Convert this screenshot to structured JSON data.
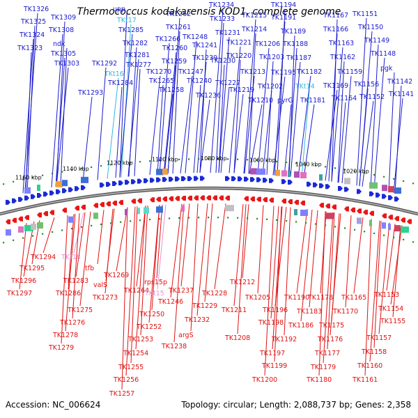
{
  "title": "Thermococcus kodakarensis KOD1, complete genome",
  "footer": {
    "accession": "Accession: NC_006624",
    "summary": "Topology: circular; Length: 2,088,737 bp; Genes: 2,358"
  },
  "colors": {
    "forward_gene": "#1a1acc",
    "reverse_gene": "#e01010",
    "forward_rna": "#30b8e0",
    "reverse_rna": "#e890d0",
    "backbone": "#888888",
    "tick": "#2a8a2a"
  },
  "scale_labels": [
    "1160 kbp",
    "1140 kbp",
    "1120 kbp",
    "1100 kbp",
    "1080 kbp",
    "1060 kbp",
    "1040 kbp",
    "1020 kbp"
  ],
  "top_labels": [
    "TK1326",
    "TK1325",
    "TK1324",
    "TK1323",
    "TK1309",
    "TK1308",
    "ndk",
    "TK1305",
    "TK1303",
    "upp",
    "TKt17",
    "TK1285",
    "TK1282",
    "TK1281",
    "TK1277",
    "TK1292",
    "TKt16",
    "TK1284",
    "TK1293",
    "TK1262",
    "TK1261",
    "TK1266",
    "TK1260",
    "TK1259",
    "TK1270",
    "TK1265",
    "TK1258",
    "TK1248",
    "TK1241",
    "TK1239",
    "TK1247",
    "TK1240",
    "TK1236",
    "TK1234",
    "TK1233",
    "TK1231",
    "TK1230",
    "TK1227",
    "TK1221",
    "TK1220",
    "TK1219",
    "TK1215",
    "TK1214",
    "TK1213",
    "TK1210",
    "TK1194",
    "TK1191",
    "TK1189",
    "TK1188",
    "TK1206",
    "TK1203",
    "TK1202",
    "TK1195",
    "pyrG",
    "TK1187",
    "TK1182",
    "TKt14",
    "TK1181",
    "TK1167",
    "TK1166",
    "TK1163",
    "TK1162",
    "TK1159",
    "TK1169",
    "TK1164",
    "TK1151",
    "TK1150",
    "TK1149",
    "TK1148",
    "pgk",
    "TK1156",
    "TK1152",
    "TK1142",
    "TK1141"
  ],
  "bottom_labels": [
    "TK1294",
    "TK1295",
    "TK1296",
    "TK1297",
    "TKt18",
    "tfb",
    "TK1283",
    "TK1286",
    "valS",
    "TK1269",
    "TK1273",
    "TK1275",
    "TK1276",
    "TK1278",
    "TK1279",
    "TK1264",
    "rps15p",
    "TKt15",
    "TK1246",
    "TK1250",
    "TK1252",
    "TK1253",
    "TK1254",
    "TK1255",
    "TK1256",
    "TK1257",
    "TK1237",
    "TK1228",
    "TK1229",
    "TK1232",
    "argS",
    "TK1238",
    "TK1212",
    "TK1211",
    "TK1205",
    "TK1208",
    "TK1196",
    "TK1198",
    "TK1190",
    "TK1199",
    "TK1197",
    "TK1192",
    "TK1200",
    "TK1178",
    "TK1183",
    "TK1186",
    "TK1175",
    "TK1176",
    "TK1177",
    "TK1179",
    "TK1180",
    "TK1165",
    "TK1170",
    "TK1153",
    "TK1154",
    "TK1155",
    "TK1157",
    "TK1158",
    "TK1160",
    "TK1161"
  ]
}
